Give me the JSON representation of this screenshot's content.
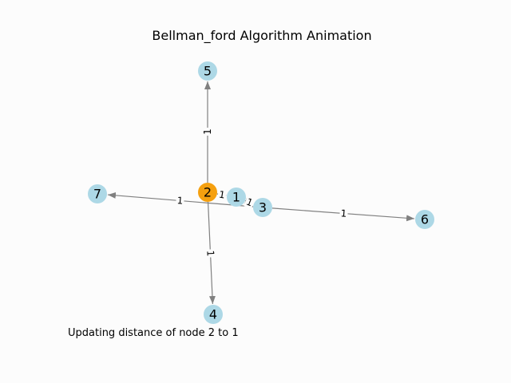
{
  "title": "Bellman_ford Algorithm Animation",
  "status_text": "Updating distance of node 2 to 1",
  "colors": {
    "node_default": "#add8e6",
    "node_active": "#f5a00f",
    "edge": "#808080",
    "background": "#fcfcfc"
  },
  "nodes": [
    {
      "id": "1",
      "label": "1",
      "state": "default"
    },
    {
      "id": "2",
      "label": "2",
      "state": "active"
    },
    {
      "id": "3",
      "label": "3",
      "state": "default"
    },
    {
      "id": "4",
      "label": "4",
      "state": "default"
    },
    {
      "id": "5",
      "label": "5",
      "state": "default"
    },
    {
      "id": "6",
      "label": "6",
      "state": "default"
    },
    {
      "id": "7",
      "label": "7",
      "state": "default"
    }
  ],
  "edges": [
    {
      "from": "2",
      "to": "5",
      "weight": "1"
    },
    {
      "from": "2",
      "to": "1",
      "weight": "1"
    },
    {
      "from": "1",
      "to": "3",
      "weight": "1"
    },
    {
      "from": "3",
      "to": "7",
      "weight": "1"
    },
    {
      "from": "3",
      "to": "6",
      "weight": "1"
    },
    {
      "from": "2",
      "to": "4",
      "weight": "1"
    }
  ]
}
